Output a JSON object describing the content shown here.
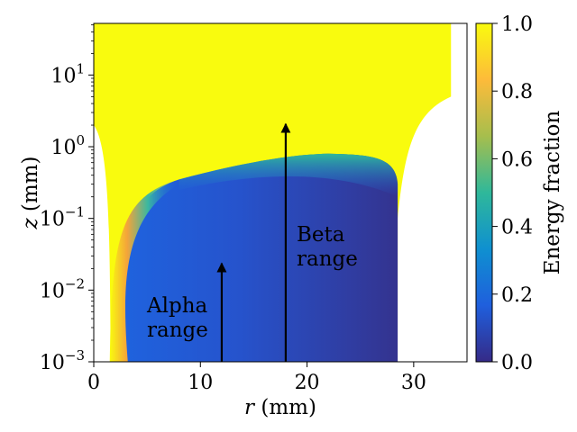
{
  "chart_data": {
    "type": "heatmap",
    "title": "",
    "xlabel_var": "r",
    "xlabel_unit": " (mm)",
    "ylabel_var": "z",
    "ylabel_unit": " (mm)",
    "xlim": [
      0,
      35
    ],
    "ylim_log10": [
      -3,
      1.72
    ],
    "x_ticks": [
      {
        "value": 0,
        "label": "0"
      },
      {
        "value": 10,
        "label": "10"
      },
      {
        "value": 20,
        "label": "20"
      },
      {
        "value": 30,
        "label": "30"
      }
    ],
    "y_ticks": [
      {
        "exp": -3,
        "base": "10",
        "sup": "−3"
      },
      {
        "exp": -2,
        "base": "10",
        "sup": "−2"
      },
      {
        "exp": -1,
        "base": "10",
        "sup": "−1"
      },
      {
        "exp": 0,
        "base": "10",
        "sup": "0"
      },
      {
        "exp": 1,
        "base": "10",
        "sup": "1"
      }
    ],
    "colorbar": {
      "label": "Energy fraction",
      "range": [
        0,
        1
      ],
      "ticks": [
        {
          "value": 0.0,
          "label": "0.0"
        },
        {
          "value": 0.2,
          "label": "0.2"
        },
        {
          "value": 0.4,
          "label": "0.4"
        },
        {
          "value": 0.6,
          "label": "0.6"
        },
        {
          "value": 0.8,
          "label": "0.8"
        },
        {
          "value": 1.0,
          "label": "1.0"
        }
      ],
      "colors": [
        "#352a87",
        "#1f5fdd",
        "#0f90d0",
        "#2fb89a",
        "#a6be4d",
        "#fdbb3a",
        "#f9fb0e"
      ]
    },
    "regions": {
      "full_energy_value": 1.0,
      "left_boundary_r_mm": 1.5,
      "right_boundary_r_mm": 28.5,
      "top_of_absorbed_region_z_mm": 0.8,
      "outer_edge_r_mm": 33.5
    },
    "annotations": [
      {
        "id": "alpha",
        "lines": [
          "Alpha",
          "range"
        ],
        "arrow_r_mm": 12,
        "arrow_z_from_mm": 0.001,
        "arrow_z_to_mm": 0.025
      },
      {
        "id": "beta",
        "lines": [
          "Beta",
          "range"
        ],
        "arrow_r_mm": 18,
        "arrow_z_from_mm": 0.001,
        "arrow_z_to_mm": 2.2
      }
    ]
  }
}
